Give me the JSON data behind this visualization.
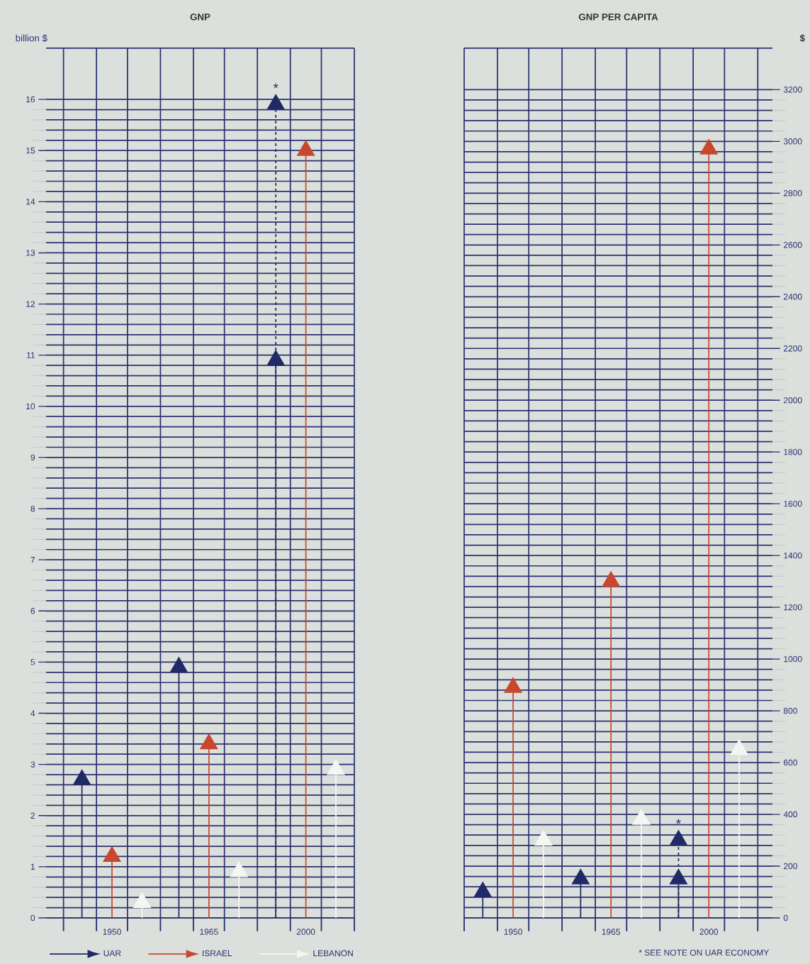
{
  "chart_data": [
    {
      "type": "lollipop",
      "title": "GNP",
      "ylabel": "billion $",
      "categories": [
        "1950",
        "1965",
        "2000"
      ],
      "series": [
        {
          "name": "UAR",
          "color": "#1f2a66",
          "values": [
            2.7,
            4.9,
            10.9
          ]
        },
        {
          "name": "ISRAEL",
          "color": "#c8472e",
          "values": [
            1.2,
            3.4,
            15.0
          ]
        },
        {
          "name": "LEBANON",
          "color": "#f4f6f4",
          "values": [
            0.3,
            0.9,
            2.9
          ]
        },
        {
          "color": "#1f2a66",
          "values": [
            null,
            null,
            15.9
          ],
          "line_style": "dashed"
        }
      ],
      "ylim": [
        0,
        17
      ],
      "yticks": [
        0,
        1,
        2,
        3,
        4,
        5,
        6,
        7,
        8,
        9,
        10,
        11,
        12,
        13,
        14,
        15,
        16
      ],
      "annotations": [
        "*"
      ],
      "grid": true,
      "marker": "triangle",
      "legend": "bottom"
    },
    {
      "type": "lollipop",
      "title": "GNP PER CAPITA",
      "ylabel": "$",
      "categories": [
        "1950",
        "1965",
        "2000"
      ],
      "series": [
        {
          "color": "#1f2a66",
          "values": [
            100,
            150,
            150
          ]
        },
        {
          "color": "#c8472e",
          "values": [
            890,
            1300,
            2970
          ]
        },
        {
          "color": "#f4f6f4",
          "values": [
            300,
            380,
            650
          ]
        },
        {
          "color": "#1f2a66",
          "values": [
            null,
            null,
            300
          ],
          "line_style": "dashed"
        }
      ],
      "ylim": [
        0,
        3360
      ],
      "yticks": [
        0,
        200,
        400,
        600,
        800,
        1000,
        1200,
        1400,
        1600,
        1800,
        2000,
        2200,
        2400,
        2600,
        2800,
        3000,
        3200
      ],
      "annotations": [
        "*",
        "* SEE NOTE ON UAR ECONOMY"
      ],
      "grid": true,
      "marker": "triangle"
    }
  ]
}
